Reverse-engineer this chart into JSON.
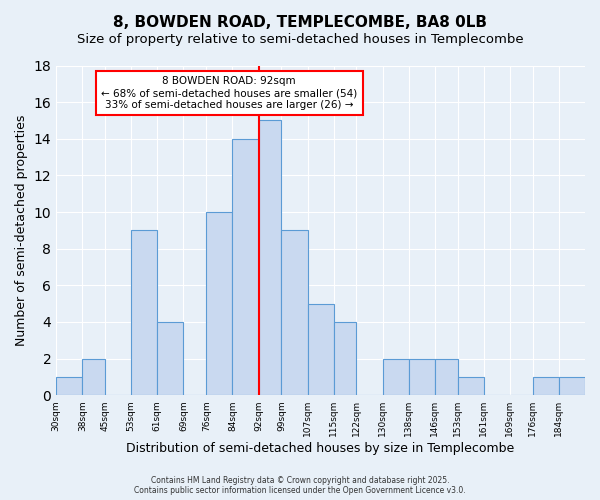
{
  "title": "8, BOWDEN ROAD, TEMPLECOMBE, BA8 0LB",
  "subtitle": "Size of property relative to semi-detached houses in Templecombe",
  "xlabel": "Distribution of semi-detached houses by size in Templecombe",
  "ylabel": "Number of semi-detached properties",
  "bin_labels": [
    "30sqm",
    "38sqm",
    "45sqm",
    "53sqm",
    "61sqm",
    "69sqm",
    "76sqm",
    "84sqm",
    "92sqm",
    "99sqm",
    "107sqm",
    "115sqm",
    "122sqm",
    "130sqm",
    "138sqm",
    "146sqm",
    "153sqm",
    "161sqm",
    "169sqm",
    "176sqm",
    "184sqm"
  ],
  "bin_edges": [
    30,
    38,
    45,
    53,
    61,
    69,
    76,
    84,
    92,
    99,
    107,
    115,
    122,
    130,
    138,
    146,
    153,
    161,
    169,
    176,
    184,
    192
  ],
  "counts": [
    1,
    2,
    0,
    9,
    4,
    0,
    10,
    14,
    15,
    9,
    5,
    4,
    0,
    2,
    2,
    2,
    1,
    0,
    0,
    1,
    1
  ],
  "bar_color": "#c9d9f0",
  "bar_edge_color": "#5b9bd5",
  "vline_x": 92,
  "vline_color": "red",
  "annotation_title": "8 BOWDEN ROAD: 92sqm",
  "annotation_line1": "← 68% of semi-detached houses are smaller (54)",
  "annotation_line2": "33% of semi-detached houses are larger (26) →",
  "annotation_box_color": "white",
  "annotation_box_edge": "red",
  "ylim": [
    0,
    18
  ],
  "yticks": [
    0,
    2,
    4,
    6,
    8,
    10,
    12,
    14,
    16,
    18
  ],
  "background_color": "#e8f0f8",
  "footer_line1": "Contains HM Land Registry data © Crown copyright and database right 2025.",
  "footer_line2": "Contains public sector information licensed under the Open Government Licence v3.0.",
  "title_fontsize": 11,
  "subtitle_fontsize": 9.5,
  "xlabel_fontsize": 9,
  "ylabel_fontsize": 9
}
